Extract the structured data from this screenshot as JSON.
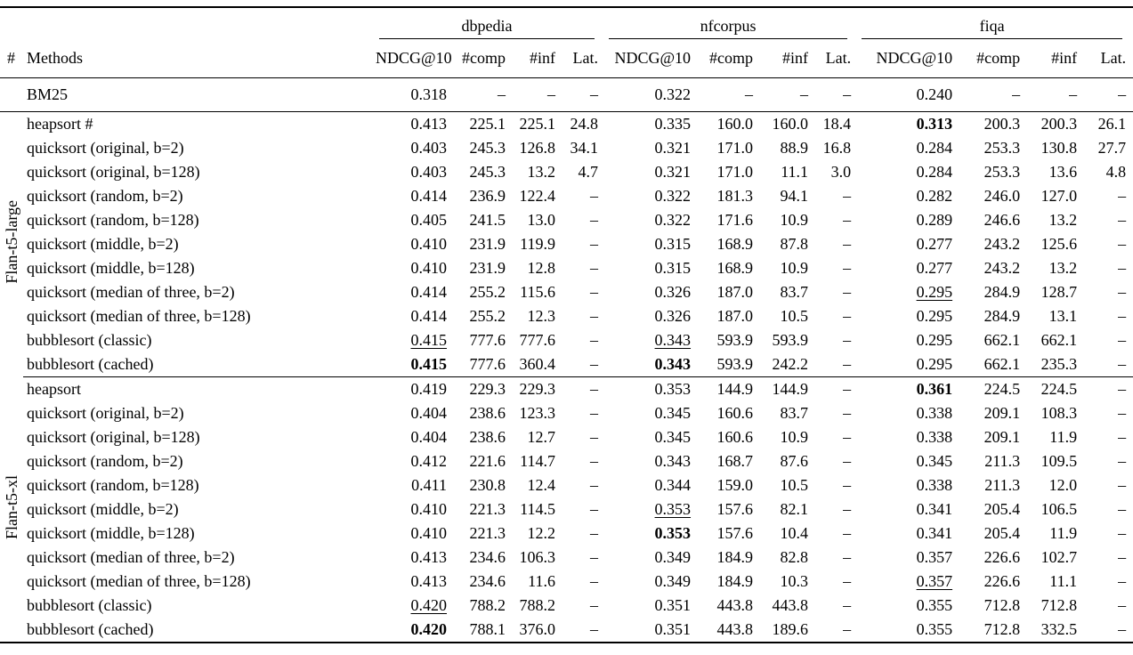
{
  "colors": {
    "background": "#ffffff",
    "text": "#000000",
    "rule": "#000000"
  },
  "table": {
    "col_headers": {
      "num": "#",
      "methods": "Methods",
      "metrics": [
        "NDCG@10",
        "#comp",
        "#inf",
        "Lat."
      ]
    },
    "groups": [
      "dbpedia",
      "nfcorpus",
      "fiqa"
    ],
    "dash": "–",
    "baseline": {
      "method": "BM25",
      "cells": [
        [
          "0.318",
          "–",
          "–",
          "–",
          "normal"
        ],
        [
          "0.322",
          "–",
          "–",
          "–",
          "normal"
        ],
        [
          "0.240",
          "–",
          "–",
          "–",
          "normal"
        ]
      ]
    },
    "sections": [
      {
        "label": "Flan-t5-large",
        "rows": [
          {
            "method": "heapsort #",
            "cells": [
              [
                "0.413",
                "225.1",
                "225.1",
                "24.8",
                "normal"
              ],
              [
                "0.335",
                "160.0",
                "160.0",
                "18.4",
                "normal"
              ],
              [
                "0.313",
                "200.3",
                "200.3",
                "26.1",
                "bold"
              ]
            ]
          },
          {
            "method": "quicksort (original, b=2)",
            "cells": [
              [
                "0.403",
                "245.3",
                "126.8",
                "34.1",
                "normal"
              ],
              [
                "0.321",
                "171.0",
                "88.9",
                "16.8",
                "normal"
              ],
              [
                "0.284",
                "253.3",
                "130.8",
                "27.7",
                "normal"
              ]
            ]
          },
          {
            "method": "quicksort (original, b=128)",
            "cells": [
              [
                "0.403",
                "245.3",
                "13.2",
                "4.7",
                "normal"
              ],
              [
                "0.321",
                "171.0",
                "11.1",
                "3.0",
                "normal"
              ],
              [
                "0.284",
                "253.3",
                "13.6",
                "4.8",
                "normal"
              ]
            ]
          },
          {
            "method": "quicksort (random, b=2)",
            "cells": [
              [
                "0.414",
                "236.9",
                "122.4",
                "–",
                "normal"
              ],
              [
                "0.322",
                "181.3",
                "94.1",
                "–",
                "normal"
              ],
              [
                "0.282",
                "246.0",
                "127.0",
                "–",
                "normal"
              ]
            ]
          },
          {
            "method": "quicksort (random, b=128)",
            "cells": [
              [
                "0.405",
                "241.5",
                "13.0",
                "–",
                "normal"
              ],
              [
                "0.322",
                "171.6",
                "10.9",
                "–",
                "normal"
              ],
              [
                "0.289",
                "246.6",
                "13.2",
                "–",
                "normal"
              ]
            ]
          },
          {
            "method": "quicksort (middle, b=2)",
            "cells": [
              [
                "0.410",
                "231.9",
                "119.9",
                "–",
                "normal"
              ],
              [
                "0.315",
                "168.9",
                "87.8",
                "–",
                "normal"
              ],
              [
                "0.277",
                "243.2",
                "125.6",
                "–",
                "normal"
              ]
            ]
          },
          {
            "method": "quicksort (middle, b=128)",
            "cells": [
              [
                "0.410",
                "231.9",
                "12.8",
                "–",
                "normal"
              ],
              [
                "0.315",
                "168.9",
                "10.9",
                "–",
                "normal"
              ],
              [
                "0.277",
                "243.2",
                "13.2",
                "–",
                "normal"
              ]
            ]
          },
          {
            "method": "quicksort (median of three, b=2)",
            "cells": [
              [
                "0.414",
                "255.2",
                "115.6",
                "–",
                "normal"
              ],
              [
                "0.326",
                "187.0",
                "83.7",
                "–",
                "normal"
              ],
              [
                "0.295",
                "284.9",
                "128.7",
                "–",
                "underline"
              ]
            ]
          },
          {
            "method": "quicksort (median of three, b=128)",
            "cells": [
              [
                "0.414",
                "255.2",
                "12.3",
                "–",
                "normal"
              ],
              [
                "0.326",
                "187.0",
                "10.5",
                "–",
                "normal"
              ],
              [
                "0.295",
                "284.9",
                "13.1",
                "–",
                "normal"
              ]
            ]
          },
          {
            "method": "bubblesort (classic)",
            "cells": [
              [
                "0.415",
                "777.6",
                "777.6",
                "–",
                "underline"
              ],
              [
                "0.343",
                "593.9",
                "593.9",
                "–",
                "underline"
              ],
              [
                "0.295",
                "662.1",
                "662.1",
                "–",
                "normal"
              ]
            ]
          },
          {
            "method": "bubblesort (cached)",
            "cells": [
              [
                "0.415",
                "777.6",
                "360.4",
                "–",
                "bold"
              ],
              [
                "0.343",
                "593.9",
                "242.2",
                "–",
                "bold"
              ],
              [
                "0.295",
                "662.1",
                "235.3",
                "–",
                "normal"
              ]
            ]
          }
        ]
      },
      {
        "label": "Flan-t5-xl",
        "rows": [
          {
            "method": "heapsort",
            "cells": [
              [
                "0.419",
                "229.3",
                "229.3",
                "–",
                "normal"
              ],
              [
                "0.353",
                "144.9",
                "144.9",
                "–",
                "normal"
              ],
              [
                "0.361",
                "224.5",
                "224.5",
                "–",
                "bold"
              ]
            ]
          },
          {
            "method": "quicksort (original, b=2)",
            "cells": [
              [
                "0.404",
                "238.6",
                "123.3",
                "–",
                "normal"
              ],
              [
                "0.345",
                "160.6",
                "83.7",
                "–",
                "normal"
              ],
              [
                "0.338",
                "209.1",
                "108.3",
                "–",
                "normal"
              ]
            ]
          },
          {
            "method": "quicksort (original, b=128)",
            "cells": [
              [
                "0.404",
                "238.6",
                "12.7",
                "–",
                "normal"
              ],
              [
                "0.345",
                "160.6",
                "10.9",
                "–",
                "normal"
              ],
              [
                "0.338",
                "209.1",
                "11.9",
                "–",
                "normal"
              ]
            ]
          },
          {
            "method": "quicksort (random, b=2)",
            "cells": [
              [
                "0.412",
                "221.6",
                "114.7",
                "–",
                "normal"
              ],
              [
                "0.343",
                "168.7",
                "87.6",
                "–",
                "normal"
              ],
              [
                "0.345",
                "211.3",
                "109.5",
                "–",
                "normal"
              ]
            ]
          },
          {
            "method": "quicksort (random, b=128)",
            "cells": [
              [
                "0.411",
                "230.8",
                "12.4",
                "–",
                "normal"
              ],
              [
                "0.344",
                "159.0",
                "10.5",
                "–",
                "normal"
              ],
              [
                "0.338",
                "211.3",
                "12.0",
                "–",
                "normal"
              ]
            ]
          },
          {
            "method": "quicksort (middle, b=2)",
            "cells": [
              [
                "0.410",
                "221.3",
                "114.5",
                "–",
                "normal"
              ],
              [
                "0.353",
                "157.6",
                "82.1",
                "–",
                "underline"
              ],
              [
                "0.341",
                "205.4",
                "106.5",
                "–",
                "normal"
              ]
            ]
          },
          {
            "method": "quicksort (middle, b=128)",
            "cells": [
              [
                "0.410",
                "221.3",
                "12.2",
                "–",
                "normal"
              ],
              [
                "0.353",
                "157.6",
                "10.4",
                "–",
                "bold"
              ],
              [
                "0.341",
                "205.4",
                "11.9",
                "–",
                "normal"
              ]
            ]
          },
          {
            "method": "quicksort (median of three, b=2)",
            "cells": [
              [
                "0.413",
                "234.6",
                "106.3",
                "–",
                "normal"
              ],
              [
                "0.349",
                "184.9",
                "82.8",
                "–",
                "normal"
              ],
              [
                "0.357",
                "226.6",
                "102.7",
                "–",
                "normal"
              ]
            ]
          },
          {
            "method": "quicksort (median of three, b=128)",
            "cells": [
              [
                "0.413",
                "234.6",
                "11.6",
                "–",
                "normal"
              ],
              [
                "0.349",
                "184.9",
                "10.3",
                "–",
                "normal"
              ],
              [
                "0.357",
                "226.6",
                "11.1",
                "–",
                "underline"
              ]
            ]
          },
          {
            "method": "bubblesort (classic)",
            "cells": [
              [
                "0.420",
                "788.2",
                "788.2",
                "–",
                "underline"
              ],
              [
                "0.351",
                "443.8",
                "443.8",
                "–",
                "normal"
              ],
              [
                "0.355",
                "712.8",
                "712.8",
                "–",
                "normal"
              ]
            ]
          },
          {
            "method": "bubblesort (cached)",
            "cells": [
              [
                "0.420",
                "788.1",
                "376.0",
                "–",
                "bold"
              ],
              [
                "0.351",
                "443.8",
                "189.6",
                "–",
                "normal"
              ],
              [
                "0.355",
                "712.8",
                "332.5",
                "–",
                "normal"
              ]
            ]
          }
        ]
      }
    ]
  }
}
